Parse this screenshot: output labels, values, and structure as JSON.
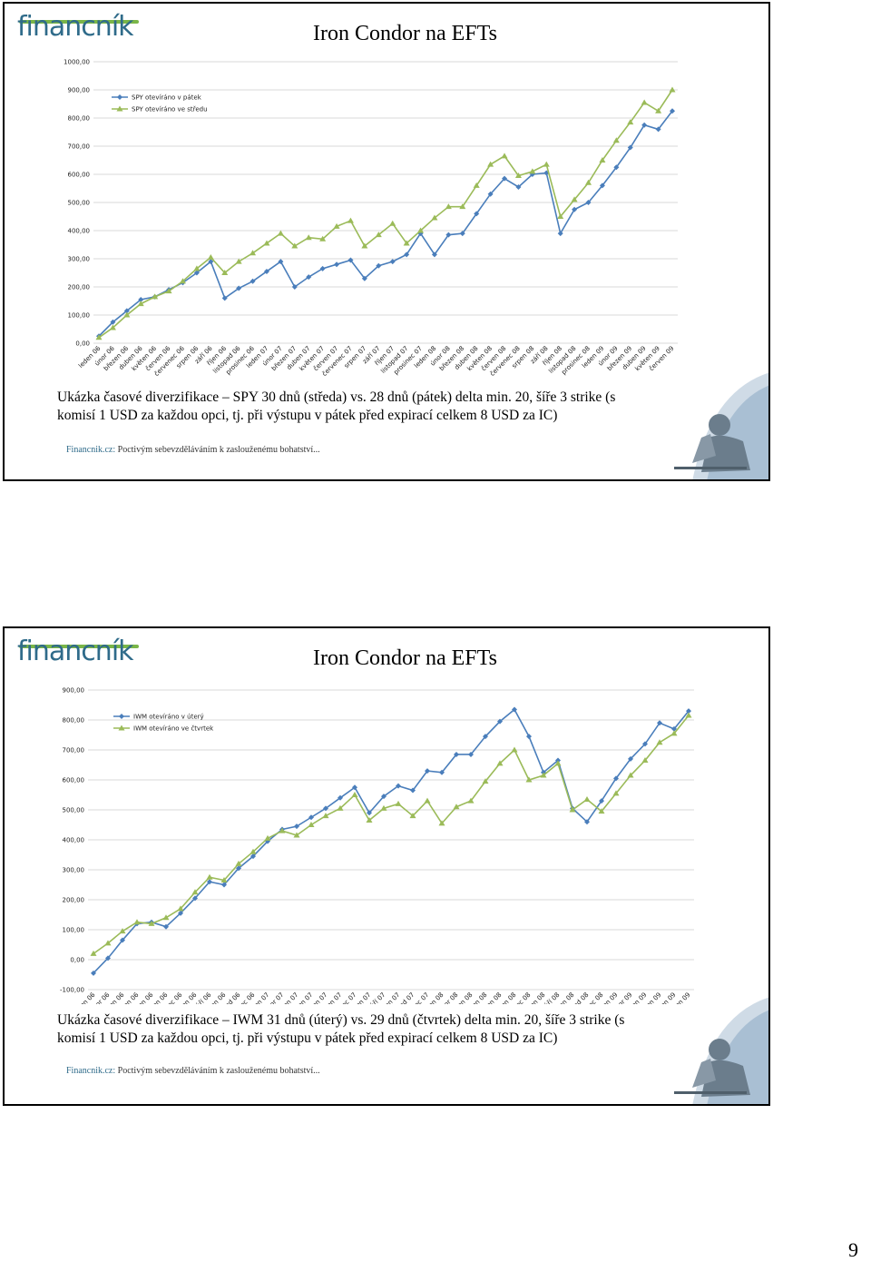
{
  "slides": [
    {
      "logo": "financník",
      "title": "Iron Condor na EFTs",
      "caption_line1": "Ukázka časové diverzifikace – SPY 30 dnů (středa) vs. 28 dnů (pátek) delta min. 20, šíře 3 strike (s",
      "caption_line2": "komisí 1 USD za každou opci, tj. při výstupu v pátek před expirací celkem 8 USD za IC)",
      "footer_site": "Financnik.cz:",
      "footer_text": " Poctivým sebevzděláváním k zaslouženému bohatství..."
    },
    {
      "logo": "financník",
      "title": "Iron Condor na EFTs",
      "caption_line1": "Ukázka časové diverzifikace – IWM 31 dnů (úterý) vs. 29 dnů (čtvrtek) delta min. 20, šíře 3 strike (s",
      "caption_line2": "komisí 1 USD za každou opci, tj. při výstupu v pátek před expirací celkem 8 USD za IC)",
      "footer_site": "Financnik.cz:",
      "footer_text": " Poctivým sebevzděláváním k zaslouženému bohatství..."
    }
  ],
  "page_number": "9",
  "colors": {
    "series_blue": "#4a7ebb",
    "series_green": "#9bbb59",
    "grid": "#d9d9d9",
    "logo": "#2f6b8a"
  },
  "chart_data": [
    {
      "type": "line",
      "title": "",
      "ylim": [
        0,
        1000
      ],
      "yticks": [
        "0,00",
        "100,00",
        "200,00",
        "300,00",
        "400,00",
        "500,00",
        "600,00",
        "700,00",
        "800,00",
        "900,00",
        "1000,00"
      ],
      "grid": true,
      "legend": "top-left",
      "categories": [
        "leden 06",
        "únor 06",
        "březen 06",
        "duben 06",
        "květen 06",
        "červen 06",
        "červenec 06",
        "srpen 06",
        "září 06",
        "říjen 06",
        "listopad 06",
        "prosinec 06",
        "leden 07",
        "únor 07",
        "březen 07",
        "duben 07",
        "květen 07",
        "červen 07",
        "červenec 07",
        "srpen 07",
        "září 07",
        "říjen 07",
        "listopad 07",
        "prosinec 07",
        "leden 08",
        "únor 08",
        "březen 08",
        "duben 08",
        "květen 08",
        "červen 08",
        "červenec 08",
        "srpen 08",
        "září 08",
        "říjen 08",
        "listopad 08",
        "prosinec 08",
        "leden 09",
        "únor 09",
        "březen 09",
        "duben 09",
        "květen 09",
        "červen 09"
      ],
      "series": [
        {
          "name": "SPY otevíráno v pátek",
          "color": "#4a7ebb",
          "marker": "diamond",
          "values": [
            25,
            75,
            115,
            155,
            165,
            190,
            215,
            250,
            290,
            160,
            195,
            220,
            255,
            290,
            200,
            235,
            265,
            280,
            295,
            230,
            275,
            290,
            315,
            390,
            315,
            385,
            390,
            460,
            530,
            585,
            555,
            600,
            605,
            390,
            475,
            500,
            560,
            625,
            695,
            775,
            760,
            825
          ]
        },
        {
          "name": "SPY otevíráno ve středu",
          "color": "#9bbb59",
          "marker": "triangle",
          "values": [
            20,
            55,
            100,
            140,
            165,
            185,
            220,
            265,
            305,
            250,
            290,
            320,
            355,
            390,
            345,
            375,
            370,
            415,
            435,
            345,
            385,
            425,
            355,
            400,
            445,
            485,
            485,
            560,
            635,
            665,
            595,
            610,
            635,
            450,
            510,
            570,
            650,
            720,
            785,
            855,
            825,
            900
          ]
        }
      ]
    },
    {
      "type": "line",
      "title": "",
      "ylim": [
        -100,
        900
      ],
      "yticks": [
        "-100,00",
        "0,00",
        "100,00",
        "200,00",
        "300,00",
        "400,00",
        "500,00",
        "600,00",
        "700,00",
        "800,00",
        "900,00"
      ],
      "grid": true,
      "legend": "top-left",
      "categories": [
        "leden 06",
        "únor 06",
        "březen 06",
        "duben 06",
        "květen 06",
        "červen 06",
        "červenec 06",
        "srpen 06",
        "září 06",
        "říjen 06",
        "listopad 06",
        "prosinec 06",
        "leden 07",
        "únor 07",
        "březen 07",
        "duben 07",
        "květen 07",
        "červen 07",
        "červenec 07",
        "srpen 07",
        "září 07",
        "říjen 07",
        "listopad 07",
        "prosinec 07",
        "leden 08",
        "únor 08",
        "březen 08",
        "duben 08",
        "květen 08",
        "červen 08",
        "červenec 08",
        "srpen 08",
        "září 08",
        "říjen 08",
        "listopad 08",
        "prosinec 08",
        "leden 09",
        "únor 09",
        "březen 09",
        "duben 09",
        "květen 09",
        "červen 09"
      ],
      "series": [
        {
          "name": "IWM otevíráno v úterý",
          "color": "#4a7ebb",
          "marker": "diamond",
          "values": [
            -45,
            5,
            65,
            120,
            125,
            110,
            155,
            205,
            260,
            250,
            305,
            345,
            395,
            435,
            445,
            475,
            505,
            540,
            575,
            490,
            545,
            580,
            565,
            630,
            625,
            685,
            685,
            745,
            795,
            835,
            745,
            625,
            665,
            505,
            460,
            530,
            605,
            670,
            720,
            790,
            770,
            830
          ]
        },
        {
          "name": "IWM otevíráno ve čtvrtek",
          "color": "#9bbb59",
          "marker": "triangle",
          "values": [
            20,
            55,
            95,
            125,
            120,
            140,
            170,
            225,
            275,
            265,
            320,
            360,
            405,
            430,
            415,
            450,
            480,
            505,
            550,
            465,
            505,
            520,
            480,
            530,
            455,
            510,
            530,
            595,
            655,
            700,
            600,
            615,
            655,
            500,
            535,
            495,
            555,
            615,
            665,
            725,
            755,
            815
          ]
        }
      ]
    }
  ]
}
